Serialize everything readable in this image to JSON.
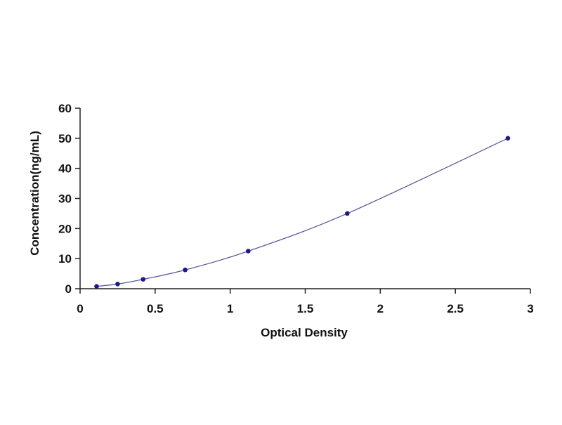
{
  "chart_data": {
    "type": "scatter",
    "title": "",
    "xlabel": "Optical Density",
    "ylabel": "Concentration(ng/mL)",
    "xlim": [
      0,
      3
    ],
    "ylim": [
      0,
      60
    ],
    "x_ticks": [
      0,
      0.5,
      1,
      1.5,
      2,
      2.5,
      3
    ],
    "y_ticks": [
      0,
      10,
      20,
      30,
      40,
      50,
      60
    ],
    "x_tick_labels": [
      "0",
      "0.5",
      "1",
      "1.5",
      "2",
      "2.5",
      "3"
    ],
    "y_tick_labels": [
      "0",
      "10",
      "20",
      "30",
      "40",
      "50",
      "60"
    ],
    "grid": false,
    "legend": "none",
    "series": [
      {
        "points": [
          {
            "x": 0.11,
            "y": 0.78
          },
          {
            "x": 0.25,
            "y": 1.56
          },
          {
            "x": 0.42,
            "y": 3.12
          },
          {
            "x": 0.7,
            "y": 6.25
          },
          {
            "x": 1.12,
            "y": 12.5
          },
          {
            "x": 1.78,
            "y": 25
          },
          {
            "x": 2.85,
            "y": 50
          }
        ],
        "fit_curve": "smooth",
        "marker_color": "#1a1a8c",
        "line_color": "#5a5a9a"
      }
    ]
  }
}
